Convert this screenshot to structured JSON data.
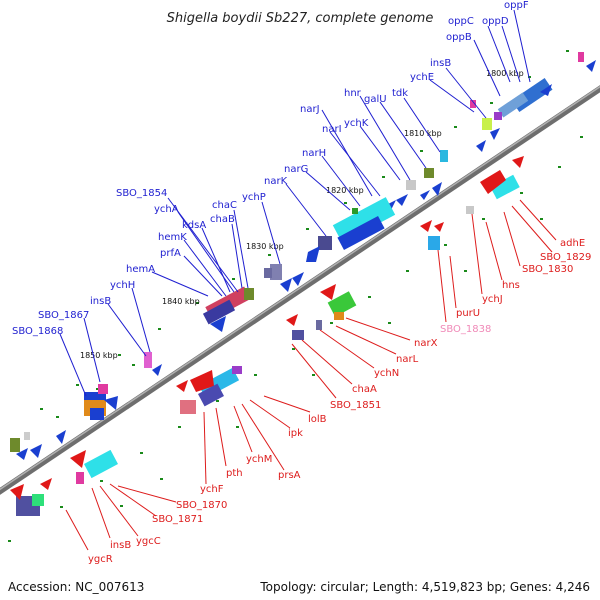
{
  "title": "Shigella boydii Sb227, complete genome",
  "accession": "Accession: NC_007613",
  "summary": "Topology: circular; Length: 4,519,823 bp; Genes: 4,246",
  "colors": {
    "forward_label": "#1f1fd0",
    "reverse_label": "#dd1c1c",
    "pink_label": "#f08ab8",
    "backbone": "#808080"
  },
  "scale_ticks": [
    "1800 kbp",
    "1810 kbp",
    "1820 kbp",
    "1830 kbp",
    "1840 kbp",
    "1850 kbp"
  ],
  "forward_genes": [
    "oppF",
    "oppD",
    "oppC",
    "oppB",
    "insB",
    "ychE",
    "tdk",
    "galU",
    "hnr",
    "ychK",
    "narI",
    "narJ",
    "narH",
    "narG",
    "narK",
    "ychP",
    "chaC",
    "chaB",
    "SBO_1854",
    "ychA",
    "kdsA",
    "hemK",
    "prfA",
    "hemA",
    "ychH",
    "insB",
    "SBO_1867",
    "SBO_1868"
  ],
  "reverse_genes": [
    "adhE",
    "SBO_1829",
    "SBO_1830",
    "hns",
    "ychJ",
    "purU",
    "SBO_1838",
    "narX",
    "narL",
    "ychN",
    "chaA",
    "SBO_1851",
    "lolB",
    "ipk",
    "prsA",
    "ychM",
    "pth",
    "ychF",
    "SBO_1870",
    "SBO_1871",
    "ygcC",
    "insB",
    "ygcR"
  ]
}
